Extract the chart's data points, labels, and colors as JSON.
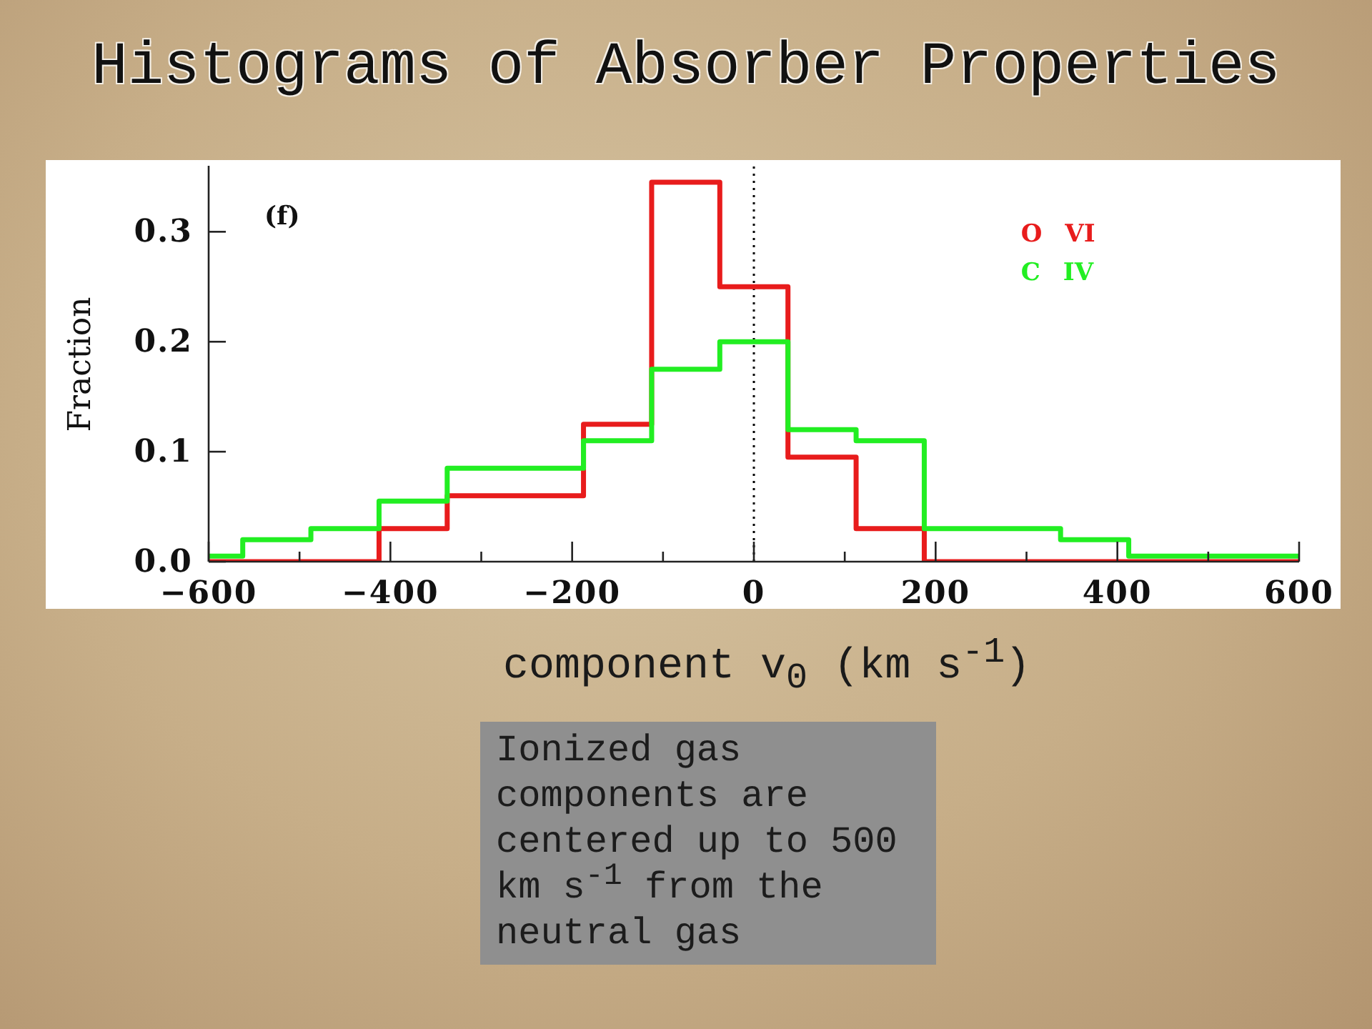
{
  "chart_data": {
    "type": "histogram",
    "title": "Histograms of Absorber Properties",
    "xlabel": "component v$_{0}$ (km s$^{-1}$)",
    "ylabel": "Fraction",
    "annotations": [
      "(f)",
      "Ionized gas components are centered up to 500 km s$^{-1}$ from the neutral gas"
    ],
    "bins": [
      -600,
      -562.5,
      -487.5,
      -412.5,
      -337.5,
      -262.5,
      -187.5,
      -112.5,
      -37.5,
      37.5,
      112.5,
      187.5,
      262.5,
      337.5,
      412.5,
      487.5,
      562.5,
      600
    ],
    "series": [
      {
        "name": "O VI",
        "color": "#e81c1c",
        "values": [
          0,
          0,
          0,
          0.03,
          0.06,
          0.06,
          0.125,
          0.345,
          0.25,
          0.095,
          0.03,
          0,
          0,
          0,
          0,
          0,
          0
        ]
      },
      {
        "name": "C IV",
        "color": "#22ee22",
        "values": [
          0.005,
          0.02,
          0.03,
          0.055,
          0.085,
          0.085,
          0.11,
          0.175,
          0.2,
          0.12,
          0.11,
          0.03,
          0.03,
          0.02,
          0.005,
          0.005,
          0.005
        ]
      }
    ],
    "xlim": [
      -600,
      600
    ],
    "xticks": [
      {
        "value": -600,
        "label": "−600"
      },
      {
        "value": -500,
        "label": null
      },
      {
        "value": -400,
        "label": "−400"
      },
      {
        "value": -300,
        "label": null
      },
      {
        "value": -200,
        "label": "−200"
      },
      {
        "value": -100,
        "label": null
      },
      0,
      {
        "value": 100,
        "label": null
      },
      200,
      {
        "value": 300,
        "label": null
      },
      400,
      {
        "value": 500,
        "label": null
      },
      600
    ],
    "ylim": [
      0,
      0.36
    ],
    "yticks": [
      {
        "value": 0,
        "label": "0.0"
      },
      0.1,
      0.2,
      0.3
    ],
    "ref_lines": [
      {
        "axis": "x",
        "value": 0,
        "color": "#000000",
        "line_style": "dotted"
      }
    ],
    "legend": "top right"
  }
}
